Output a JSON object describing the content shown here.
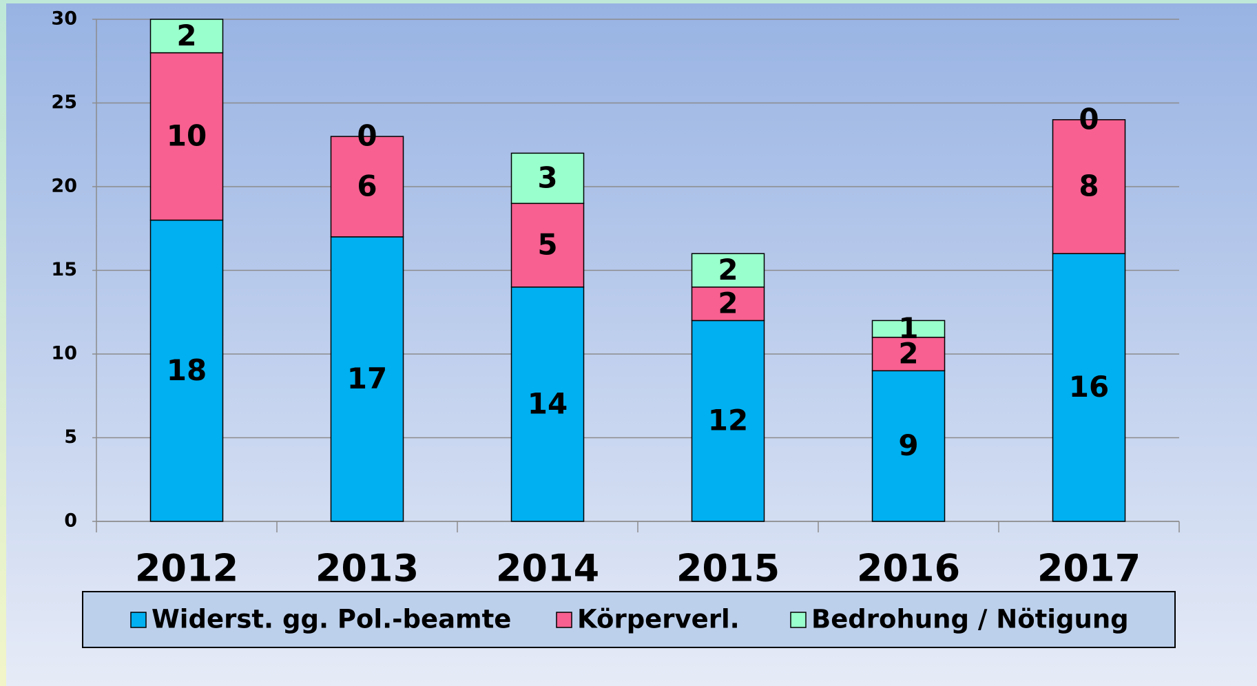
{
  "chart_data": {
    "type": "bar",
    "stacked": true,
    "categories": [
      "2012",
      "2013",
      "2014",
      "2015",
      "2016",
      "2017"
    ],
    "series": [
      {
        "name": "Widerst. gg. Pol.-beamte",
        "color": "#00b0f0",
        "values": [
          18,
          17,
          14,
          12,
          9,
          16
        ]
      },
      {
        "name": "Körperverl.",
        "color": "#f76090",
        "values": [
          10,
          6,
          5,
          2,
          2,
          8
        ]
      },
      {
        "name": "Bedrohung / Nötigung",
        "color": "#99ffcc",
        "values": [
          2,
          0,
          3,
          2,
          1,
          0
        ]
      }
    ],
    "ylim": [
      0,
      30
    ],
    "yticks": [
      0,
      5,
      10,
      15,
      20,
      25,
      30
    ],
    "grid": true,
    "legend": "bottom"
  }
}
